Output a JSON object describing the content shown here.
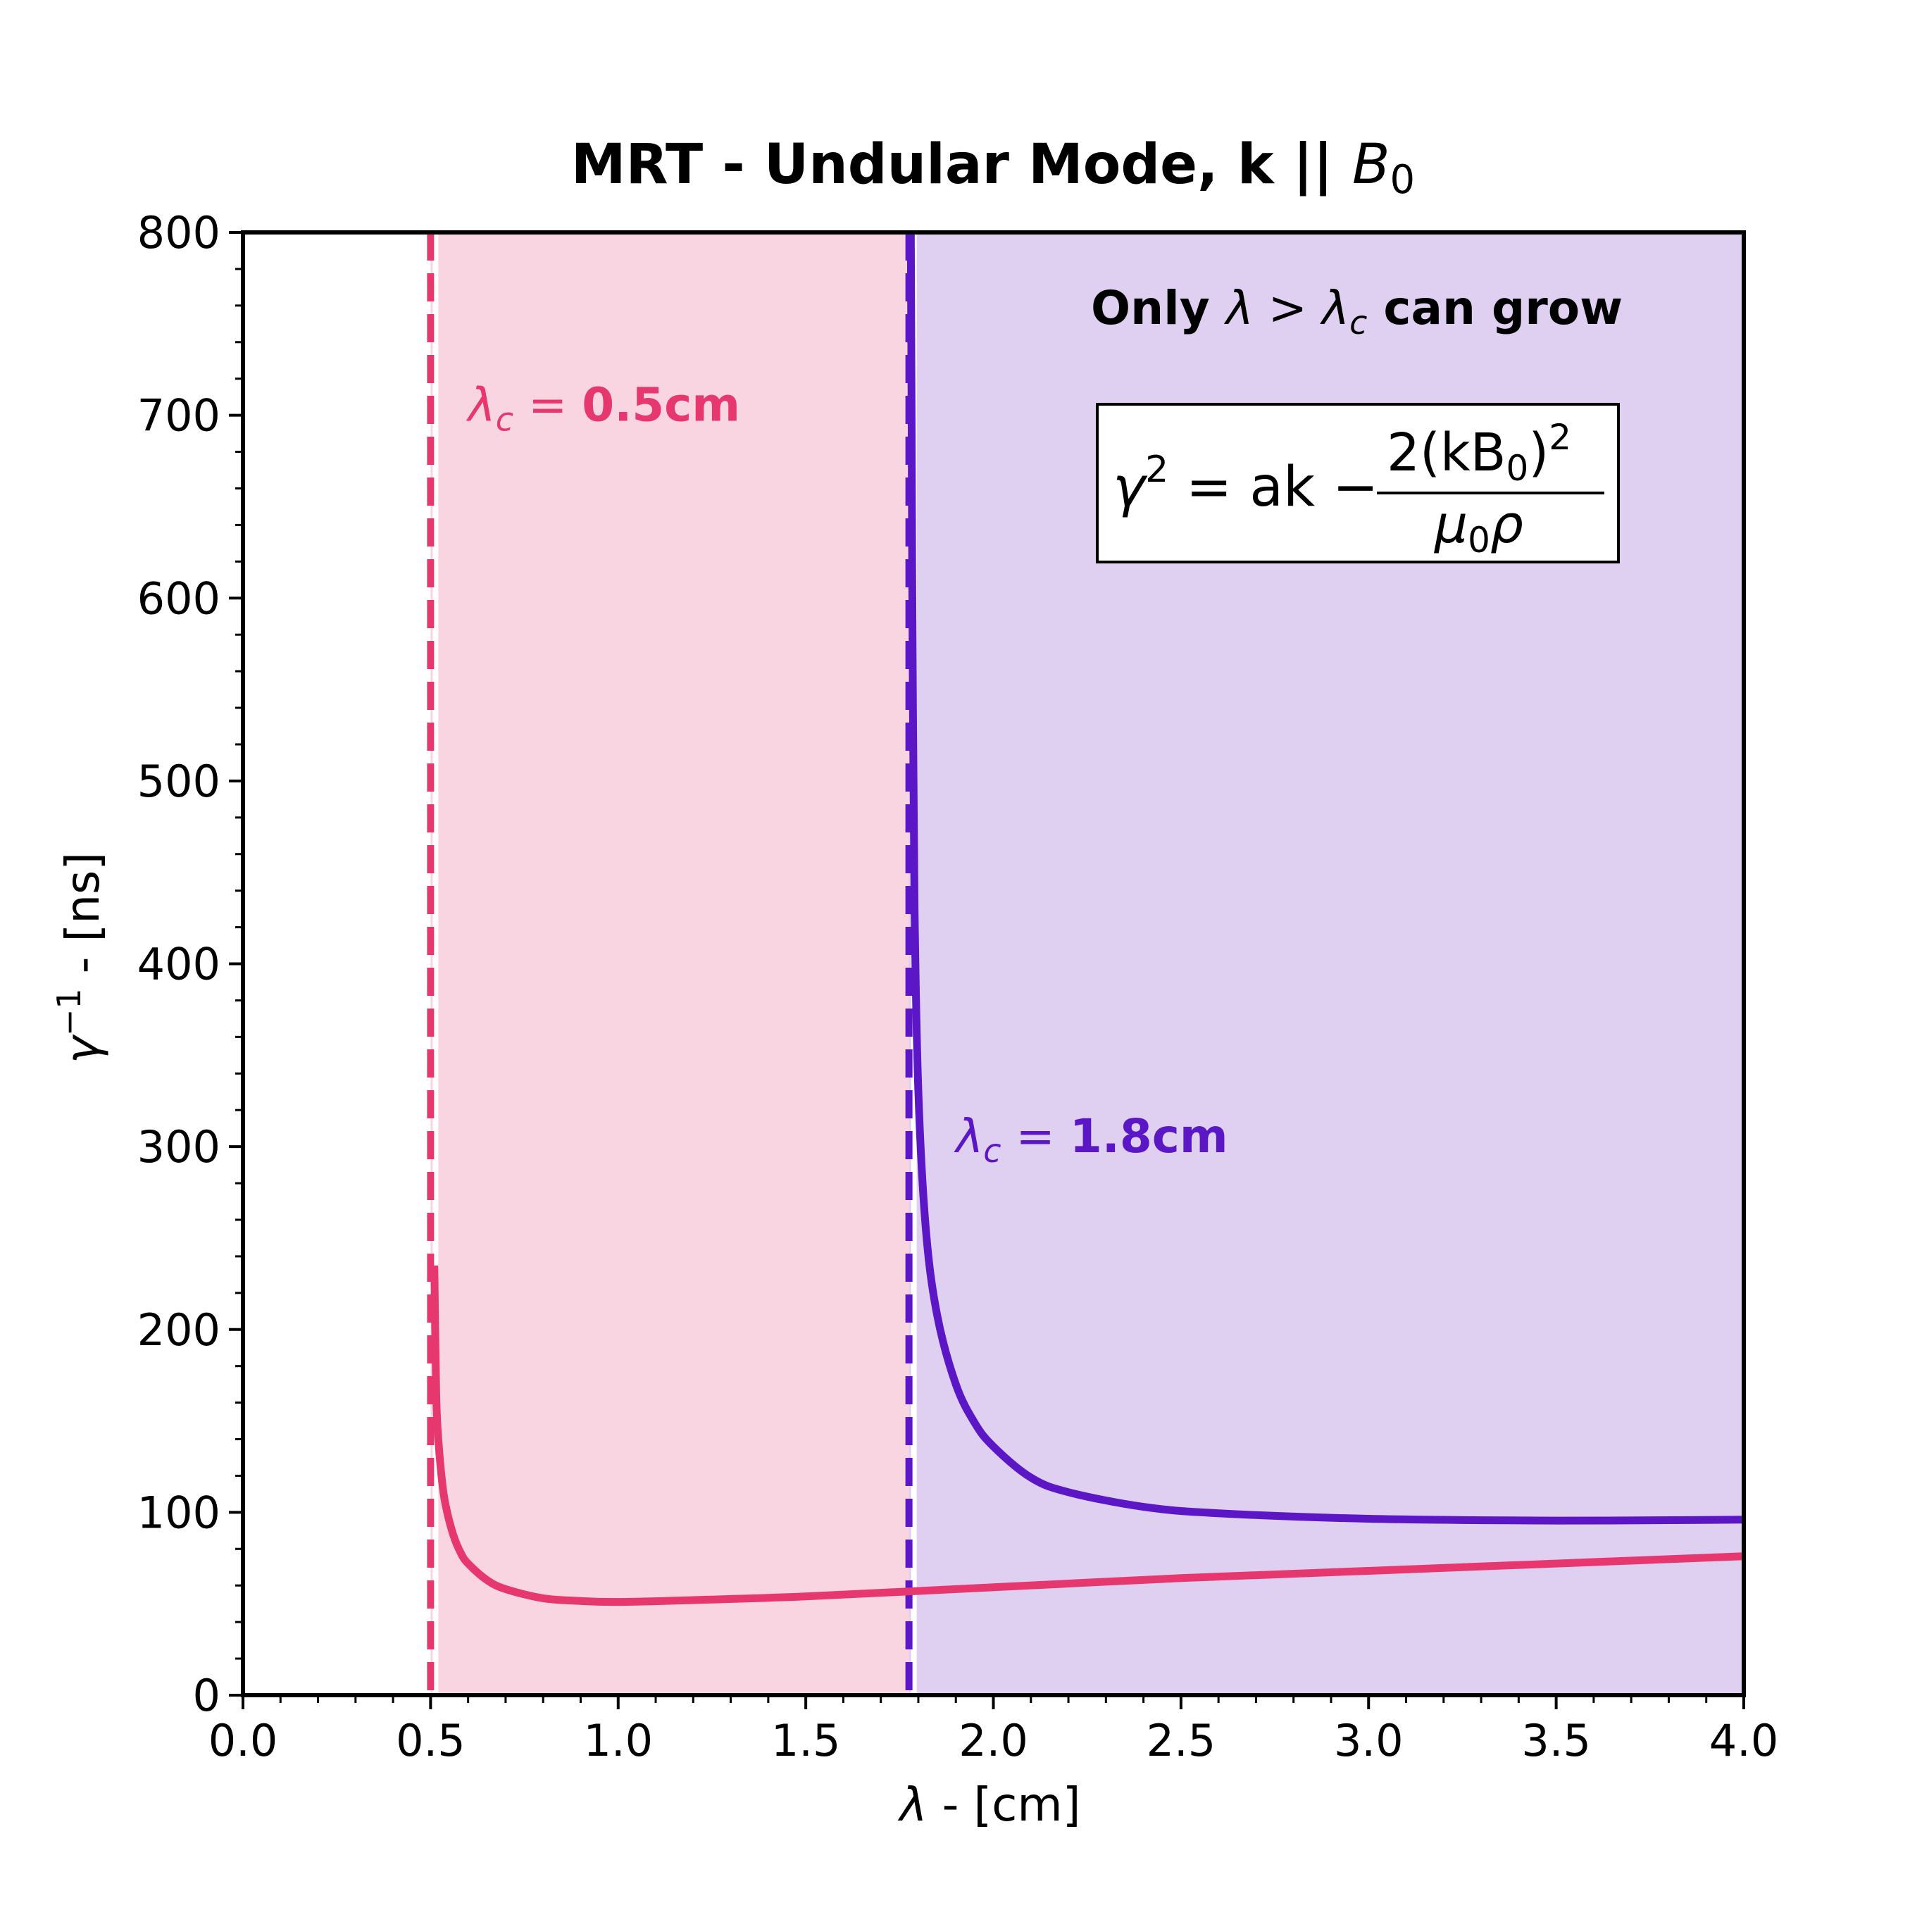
{
  "chart_data": {
    "type": "line",
    "title": "MRT - Undular Mode, k || ",
    "title_math": "B",
    "title_math_sub": "0",
    "xlabel_symbol": "λ",
    "xlabel": " - [cm]",
    "ylabel_symbol": "γ",
    "ylabel_sup": "−1",
    "ylabel": " - [ns]",
    "xlim": [
      0.0,
      4.0
    ],
    "ylim": [
      0,
      800
    ],
    "xticks": [
      0.0,
      0.5,
      1.0,
      1.5,
      2.0,
      2.5,
      3.0,
      3.5,
      4.0
    ],
    "xtick_labels": [
      "0.0",
      "0.5",
      "1.0",
      "1.5",
      "2.0",
      "2.5",
      "3.0",
      "3.5",
      "4.0"
    ],
    "yticks": [
      0,
      100,
      200,
      300,
      400,
      500,
      600,
      700,
      800
    ],
    "ytick_labels": [
      "0",
      "100",
      "200",
      "300",
      "400",
      "500",
      "600",
      "700",
      "800"
    ],
    "grid": false,
    "colors": {
      "pink": "#e6386e",
      "purple": "#5b16c6",
      "pink_fill": "#f8d5e1",
      "purple_fill": "#dfd0f2"
    },
    "shaded_regions": [
      {
        "x_from": 0.5,
        "x_to": 4.0,
        "color": "#f8d5e1"
      },
      {
        "x_from": 1.775,
        "x_to": 4.0,
        "color": "#dfd0f2"
      }
    ],
    "critical_lines": [
      {
        "x": 0.5,
        "color": "#e6386e",
        "label_symbol": "λ",
        "label_sub": "c",
        "label_eq": " = ",
        "label_value": "0.5cm",
        "label_at": [
          0.6,
          697
        ]
      },
      {
        "x": 1.775,
        "color": "#5b16c6",
        "label_symbol": "λ",
        "label_sub": "c",
        "label_eq": " = ",
        "label_value": "1.8cm",
        "label_at": [
          1.9,
          297
        ]
      }
    ],
    "series": [
      {
        "color": "#e6386e",
        "x": [
          0.51,
          0.515,
          0.52,
          0.53,
          0.54,
          0.56,
          0.58,
          0.6,
          0.65,
          0.7,
          0.8,
          0.9,
          1.0,
          1.2,
          1.5,
          2.0,
          2.5,
          3.0,
          3.5,
          4.0
        ],
        "y": [
          235,
          165,
          142,
          118,
          104,
          88,
          78,
          72,
          63,
          58,
          53,
          51.5,
          51,
          52,
          54,
          59,
          64,
          68,
          72,
          76
        ]
      },
      {
        "color": "#5b16c6",
        "x": [
          1.78,
          1.782,
          1.785,
          1.79,
          1.8,
          1.82,
          1.85,
          1.9,
          1.95,
          2.0,
          2.1,
          2.2,
          2.4,
          2.6,
          3.0,
          3.5,
          4.0
        ],
        "y": [
          800,
          700,
          560,
          430,
          330,
          255,
          208,
          170,
          149,
          136,
          119,
          111,
          103,
          99.5,
          96.5,
          95.5,
          96
        ]
      }
    ],
    "annotations": [
      {
        "prefix": "Only ",
        "symbol1": "λ",
        "op": " > ",
        "symbol2": "λ",
        "sub2": "c",
        "suffix": " can grow",
        "at": [
          2.26,
          750
        ]
      }
    ],
    "equation_box": {
      "lhs": "γ",
      "lhs_sup": "2",
      "eq": " = ak − ",
      "numerator": "2(kB",
      "numerator_sub": "0",
      "numerator_tail": ")",
      "numerator_sup": "2",
      "denominator": "μ",
      "denominator_sub": "0",
      "denominator_tail": "ρ"
    }
  }
}
